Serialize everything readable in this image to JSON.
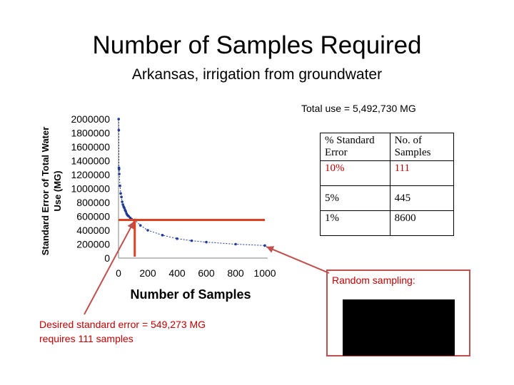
{
  "title": "Number of Samples Required",
  "subtitle": "Arkansas, irrigation from groundwater",
  "total_use": "Total use = 5,492,730 MG",
  "table": {
    "headers": [
      "% Standard Error",
      "No. of Samples"
    ],
    "rows": [
      [
        "10%",
        "111"
      ],
      [
        "5%",
        "445"
      ],
      [
        "1%",
        "8600"
      ]
    ]
  },
  "random_sampling_label": "Random sampling:",
  "desired_text": [
    "Desired standard error = 549,273 MG",
    "requires 111 samples"
  ],
  "colors": {
    "accent": "#c00000",
    "marker": "#1f3a93",
    "line": "#e0401f"
  },
  "chart_data": {
    "type": "scatter",
    "xlabel": "Number of Samples",
    "ylabel": "Standard Error of Total Water Use (MG)",
    "xlim": [
      0,
      1000
    ],
    "ylim": [
      0,
      2000000
    ],
    "xticks": [
      "0",
      "200",
      "400",
      "600",
      "800",
      "1000"
    ],
    "yticks": [
      "0",
      "200000",
      "400000",
      "600000",
      "800000",
      "1000000",
      "1200000",
      "1400000",
      "1600000",
      "1800000",
      "2000000"
    ],
    "points": [
      [
        1,
        2000000
      ],
      [
        2,
        1840000
      ],
      [
        3,
        1300000
      ],
      [
        4,
        1280000
      ],
      [
        5,
        1210000
      ],
      [
        10,
        1040000
      ],
      [
        15,
        930000
      ],
      [
        20,
        880000
      ],
      [
        25,
        810000
      ],
      [
        30,
        770000
      ],
      [
        35,
        740000
      ],
      [
        40,
        720000
      ],
      [
        45,
        690000
      ],
      [
        50,
        670000
      ],
      [
        55,
        640000
      ],
      [
        60,
        620000
      ],
      [
        65,
        610000
      ],
      [
        70,
        600000
      ],
      [
        80,
        580000
      ],
      [
        90,
        560000
      ],
      [
        111,
        549000
      ],
      [
        150,
        470000
      ],
      [
        200,
        400000
      ],
      [
        300,
        330000
      ],
      [
        400,
        280000
      ],
      [
        500,
        250000
      ],
      [
        600,
        230000
      ],
      [
        800,
        200000
      ],
      [
        1000,
        180000
      ]
    ],
    "annotation": {
      "x": 111,
      "y": 549273
    }
  }
}
